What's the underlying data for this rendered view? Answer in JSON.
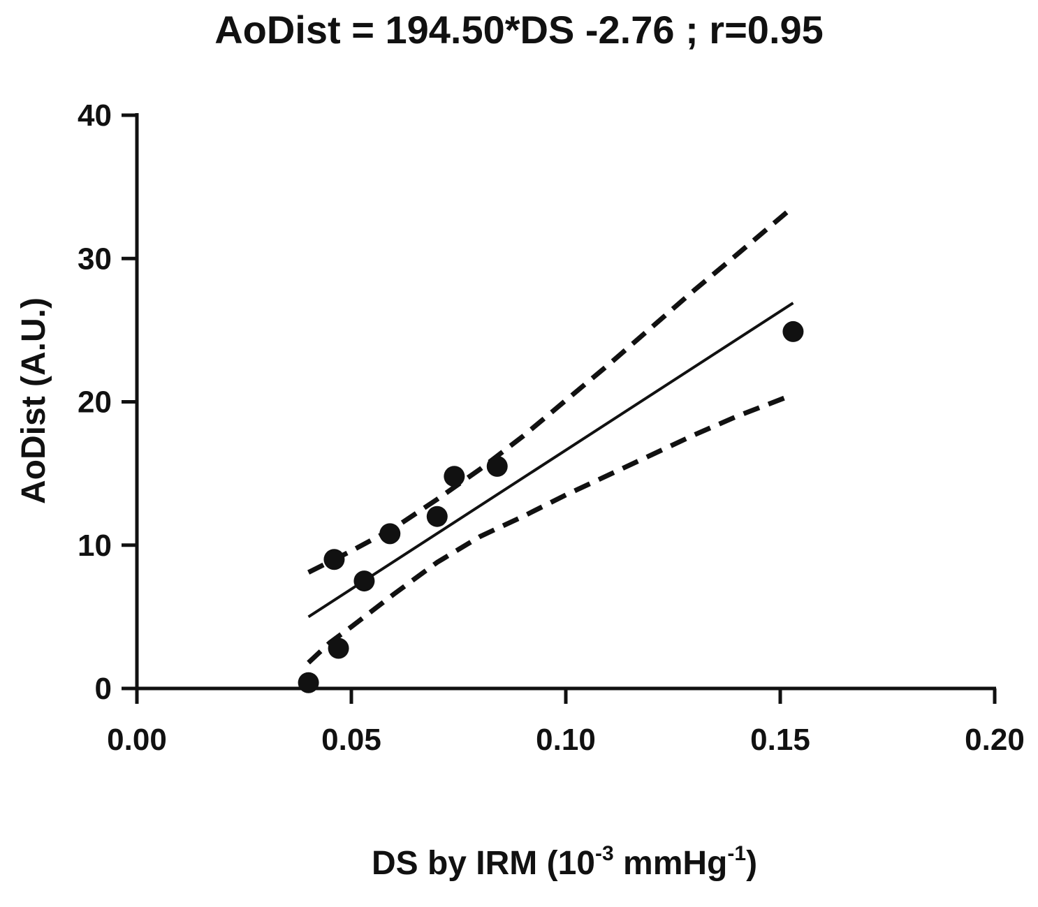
{
  "chart_data": {
    "type": "scatter",
    "title": "AoDist = 194.50*DS -2.76 ; r=0.95",
    "xlabel": {
      "prefix": "DS by IRM (10",
      "exp1": "-3",
      "middle": " mmHg",
      "exp2": "-1",
      "suffix": ")"
    },
    "ylabel": "AoDist (A.U.)",
    "xlim": [
      0.0,
      0.2
    ],
    "ylim": [
      0,
      40
    ],
    "x_ticks": [
      0.0,
      0.05,
      0.1,
      0.15,
      0.2
    ],
    "x_tick_labels": [
      "0.00",
      "0.05",
      "0.10",
      "0.15",
      "0.20"
    ],
    "y_ticks": [
      0,
      10,
      20,
      30,
      40
    ],
    "y_tick_labels": [
      "0",
      "10",
      "20",
      "30",
      "40"
    ],
    "grid": false,
    "points": [
      {
        "x": 0.04,
        "y": 0.4
      },
      {
        "x": 0.046,
        "y": 9.0
      },
      {
        "x": 0.047,
        "y": 2.8
      },
      {
        "x": 0.053,
        "y": 7.5
      },
      {
        "x": 0.059,
        "y": 10.8
      },
      {
        "x": 0.07,
        "y": 12.0
      },
      {
        "x": 0.074,
        "y": 14.8
      },
      {
        "x": 0.084,
        "y": 15.5
      },
      {
        "x": 0.153,
        "y": 24.9
      }
    ],
    "regression_line": {
      "x": [
        0.04,
        0.153
      ],
      "y": [
        5.0,
        26.9
      ]
    },
    "confidence_band_upper": {
      "x": [
        0.04,
        0.05,
        0.06,
        0.07,
        0.08,
        0.09,
        0.1,
        0.11,
        0.12,
        0.13,
        0.14,
        0.153
      ],
      "y": [
        8.1,
        9.6,
        11.2,
        13.2,
        15.3,
        17.6,
        20.1,
        22.6,
        25.2,
        27.8,
        30.3,
        33.6
      ]
    },
    "confidence_band_lower": {
      "x": [
        0.04,
        0.045,
        0.05,
        0.06,
        0.07,
        0.08,
        0.09,
        0.1,
        0.11,
        0.12,
        0.13,
        0.14,
        0.153
      ],
      "y": [
        1.8,
        3.2,
        4.3,
        6.6,
        8.8,
        10.6,
        12.0,
        13.5,
        14.9,
        16.3,
        17.7,
        19.0,
        20.5
      ]
    }
  }
}
